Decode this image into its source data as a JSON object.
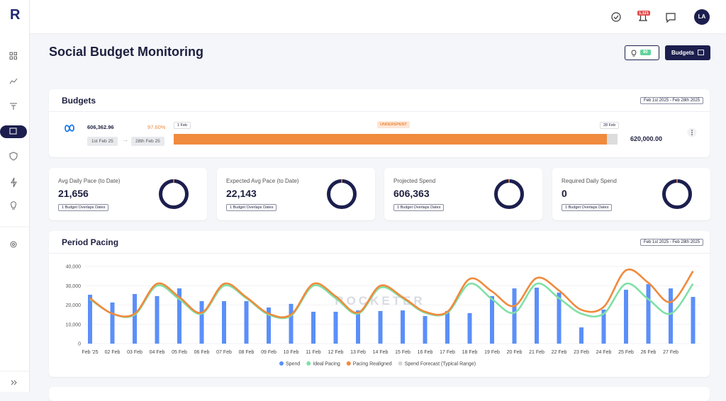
{
  "sidebar": {
    "logo": "R"
  },
  "header": {
    "notifications_badge": "1,121",
    "avatar": "LA"
  },
  "page": {
    "title": "Social Budget Monitoring",
    "insights_badge": "90",
    "budgets_button": "Budgets"
  },
  "budgets": {
    "title": "Budgets",
    "date_range": "Feb 1st 2025 - Feb 28th 2025",
    "spend": "606,362.96",
    "pace": {
      "value": 97.6,
      "label": "97.60%"
    },
    "start_date": "1st Feb 25",
    "end_date": "28th Feb 25",
    "bar_start": "1 Feb",
    "status": "UNDERSPENT",
    "bar_end": "28 Feb",
    "total": "620,000.00"
  },
  "kpis": [
    {
      "label": "Avg Daily Pace (to Date)",
      "value": "21,656",
      "note": "1 Budget Overlaps Dates"
    },
    {
      "label": "Expected Avg Pace (to Date)",
      "value": "22,143",
      "note": "1 Budget Overlaps Dates"
    },
    {
      "label": "Projected Spend",
      "value": "606,363",
      "note": "1 Budget Overlaps Dates"
    },
    {
      "label": "Required Daily Spend",
      "value": "0",
      "note": "1 Budget Overlaps Dates"
    }
  ],
  "chart_data": {
    "type": "bar",
    "title": "Period Pacing",
    "annotations": [
      "Feb 1st 2025 - Feb 28th 2025",
      "ROCKETER"
    ],
    "categories": [
      "Feb '25",
      "02 Feb",
      "03 Feb",
      "04 Feb",
      "05 Feb",
      "06 Feb",
      "07 Feb",
      "08 Feb",
      "09 Feb",
      "10 Feb",
      "11 Feb",
      "12 Feb",
      "13 Feb",
      "14 Feb",
      "15 Feb",
      "16 Feb",
      "17 Feb",
      "18 Feb",
      "19 Feb",
      "20 Feb",
      "21 Feb",
      "22 Feb",
      "23 Feb",
      "24 Feb",
      "25 Feb",
      "26 Feb",
      "27 Feb",
      null
    ],
    "series": [
      {
        "name": "Spend",
        "color": "#5b8ff9",
        "type": "bar",
        "values": [
          25300,
          21300,
          25700,
          24600,
          28600,
          22000,
          22000,
          22000,
          18700,
          20600,
          16500,
          16500,
          17200,
          16900,
          17200,
          14300,
          16900,
          15800,
          24600,
          28600,
          29000,
          26400,
          8400,
          17600,
          27900,
          30800,
          28600,
          24200
        ]
      },
      {
        "name": "Ideal Pacing",
        "color": "#7fe0a6",
        "type": "line",
        "values": [
          23000,
          15500,
          15000,
          30000,
          23000,
          15500,
          30000,
          23500,
          15000,
          14500,
          30000,
          23500,
          15500,
          29000,
          23500,
          16000,
          16000,
          31000,
          23000,
          16000,
          31000,
          23500,
          15500,
          15500,
          31000,
          23000,
          15500,
          31000
        ]
      },
      {
        "name": "Pacing Realigned",
        "color": "#f08a3c",
        "type": "line",
        "values": [
          23500,
          15500,
          15500,
          31000,
          24000,
          16000,
          31000,
          24000,
          15500,
          15000,
          31000,
          24500,
          16000,
          30000,
          24000,
          16500,
          16500,
          33500,
          27000,
          19500,
          34000,
          27500,
          17500,
          19000,
          38000,
          31500,
          21500,
          37500
        ]
      },
      {
        "name": "Spend Forecast (Typical Range)",
        "color": "#d6d6d6",
        "type": "area"
      }
    ],
    "ylim": [
      0,
      40000
    ],
    "yticks": [
      0,
      {
        "value": 10000,
        "label": "10,000"
      },
      {
        "value": 20000,
        "label": "20,000"
      },
      {
        "value": 30000,
        "label": "30,000"
      },
      {
        "value": 40000,
        "label": "40,000"
      }
    ],
    "grid": true
  }
}
